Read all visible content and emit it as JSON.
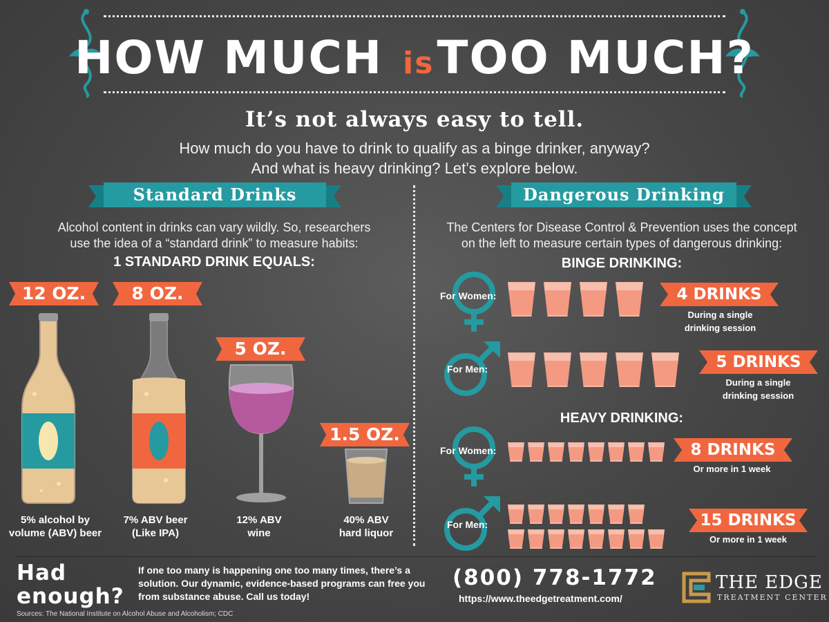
{
  "header": {
    "title_part1": "HOW MUCH",
    "title_is": "is",
    "title_part2": "TOO MUCH?",
    "subtitle": "It’s not always easy to tell.",
    "intro_line1": "How much do you have to drink to qualify as a binge drinker, anyway?",
    "intro_line2": "And what is heavy drinking? Let’s explore below."
  },
  "standard": {
    "ribbon": "Standard Drinks",
    "text_line1": "Alcohol content in drinks can vary wildly. So, researchers",
    "text_line2": "use the idea of a “standard drink” to measure habits:",
    "equals": "1 STANDARD DRINK EQUALS:",
    "drinks": [
      {
        "size": "12 OZ.",
        "caption_l1": "5% alcohol by",
        "caption_l2": "volume (ABV) beer"
      },
      {
        "size": "8 OZ.",
        "caption_l1": "7% ABV beer",
        "caption_l2": "(Like IPA)"
      },
      {
        "size": "5 OZ.",
        "caption_l1": "12% ABV",
        "caption_l2": "wine"
      },
      {
        "size": "1.5 OZ.",
        "caption_l1": "40% ABV",
        "caption_l2": "hard liquor"
      }
    ]
  },
  "dangerous": {
    "ribbon": "Dangerous Drinking",
    "text_line1": "The Centers for Disease Control & Prevention uses the concept",
    "text_line2": "on the left to measure certain types of dangerous drinking:",
    "binge_heading": "BINGE DRINKING:",
    "heavy_heading": "HEAVY DRINKING:",
    "rows": [
      {
        "label": "For Women:",
        "count": "4 DRINKS",
        "note_l1": "During a single",
        "note_l2": "drinking session",
        "cups": 4
      },
      {
        "label": "For Men:",
        "count": "5 DRINKS",
        "note_l1": "During a single",
        "note_l2": "drinking session",
        "cups": 5
      },
      {
        "label": "For Women:",
        "count": "8 DRINKS",
        "note_l1": "Or more in 1 week",
        "cups": 8
      },
      {
        "label": "For Men:",
        "count": "15 DRINKS",
        "note_l1": "Or more in 1 week",
        "cups": 15
      }
    ]
  },
  "footer": {
    "had_l1": "Had",
    "had_l2": "enough?",
    "cta": "If one too many is happening one too many times, there’s a solution. Our dynamic, evidence-based programs can free you from substance abuse. Call us today!",
    "phone": "(800) 778-1772",
    "url": "https://www.theedgetreatment.com/",
    "brand_name": "THE EDGE",
    "brand_sub": "TREATMENT CENTER",
    "sources": "Sources: The National Institute on Alcohol Abuse and Alcoholism; CDC"
  },
  "colors": {
    "accent": "#f0673f",
    "teal": "#259aa1",
    "drink_pink": "#f59a82",
    "beer": "#e8c796",
    "wine": "#b55a9c"
  },
  "icons": [
    "female-symbol-icon",
    "male-symbol-icon",
    "cup-icon",
    "beer-bottle-icon",
    "wine-glass-icon",
    "shot-glass-icon",
    "edge-logo-icon"
  ]
}
